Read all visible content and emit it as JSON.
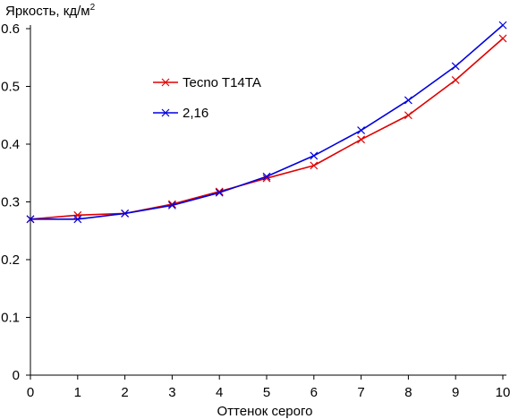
{
  "chart_data": {
    "type": "line",
    "ylabel": "Яркость, кд/м",
    "ylabel_sup": "2",
    "xlabel": "Оттенок серого",
    "x": [
      0,
      1,
      2,
      3,
      4,
      5,
      6,
      7,
      8,
      9,
      10
    ],
    "xlim": [
      0,
      10
    ],
    "ylim": [
      0,
      0.6
    ],
    "xticks": [
      "0",
      "1",
      "2",
      "3",
      "4",
      "5",
      "6",
      "7",
      "8",
      "9",
      "10"
    ],
    "yticks": [
      {
        "value": 0,
        "label": "0"
      },
      {
        "value": 0.1,
        "label": "0.1"
      },
      {
        "value": 0.2,
        "label": "0.2"
      },
      {
        "value": 0.3,
        "label": "0.3"
      },
      {
        "value": 0.4,
        "label": "0.4"
      },
      {
        "value": 0.5,
        "label": "0.5"
      },
      {
        "value": 0.6,
        "label": "0.6"
      }
    ],
    "grid": false,
    "legend_position": "upper-left",
    "series": [
      {
        "name": "Tecno T14TA",
        "color": "#e00000",
        "marker": "x",
        "values": [
          0.27,
          0.277,
          0.28,
          0.296,
          0.318,
          0.341,
          0.363,
          0.408,
          0.45,
          0.511,
          0.583
        ]
      },
      {
        "name": "2,16",
        "color": "#0000e0",
        "marker": "x",
        "values": [
          0.27,
          0.27,
          0.28,
          0.294,
          0.316,
          0.344,
          0.38,
          0.424,
          0.476,
          0.535,
          0.606
        ]
      }
    ]
  }
}
